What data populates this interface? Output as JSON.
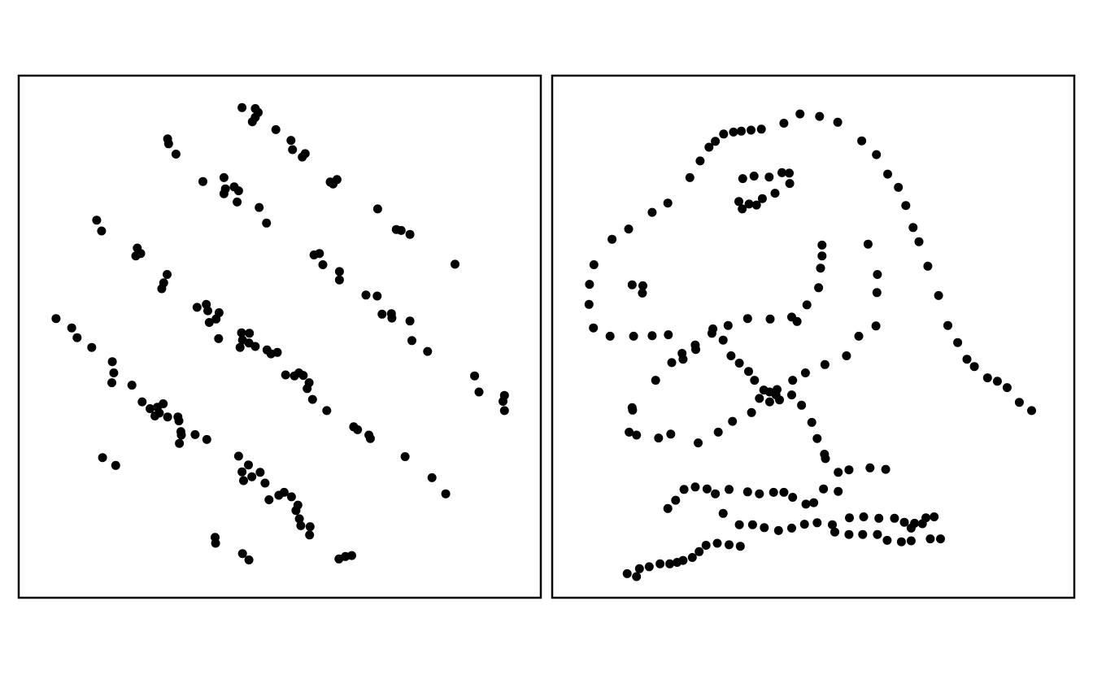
{
  "chart_data": [
    {
      "type": "scatter",
      "title": "",
      "xlabel": "",
      "ylabel": "",
      "xlim": [
        0,
        100
      ],
      "ylim": [
        0,
        100
      ],
      "grid": false,
      "axes_ticks": false,
      "point_color": "#000000",
      "points": [
        [
          42.3,
          96.8
        ],
        [
          45.0,
          96.6
        ],
        [
          45.6,
          95.8
        ],
        [
          45.0,
          94.8
        ],
        [
          44.4,
          93.9
        ],
        [
          49.2,
          92.3
        ],
        [
          52.3,
          90.1
        ],
        [
          52.6,
          88.2
        ],
        [
          55.2,
          87.4
        ],
        [
          54.6,
          86.7
        ],
        [
          27.1,
          90.4
        ],
        [
          27.3,
          89.4
        ],
        [
          28.8,
          87.3
        ],
        [
          34.3,
          81.7
        ],
        [
          38.6,
          82.5
        ],
        [
          38.9,
          80.2
        ],
        [
          40.7,
          80.6
        ],
        [
          41.6,
          79.8
        ],
        [
          38.6,
          79.2
        ],
        [
          41.3,
          77.5
        ],
        [
          45.8,
          76.4
        ],
        [
          47.3,
          73.2
        ],
        [
          60.3,
          81.6
        ],
        [
          60.9,
          81.2
        ],
        [
          61.7,
          82.1
        ],
        [
          70.0,
          76.1
        ],
        [
          73.8,
          71.9
        ],
        [
          74.8,
          71.7
        ],
        [
          76.6,
          70.9
        ],
        [
          85.8,
          64.8
        ],
        [
          12.6,
          73.8
        ],
        [
          13.6,
          71.6
        ],
        [
          20.9,
          68.1
        ],
        [
          21.6,
          67.0
        ],
        [
          20.6,
          66.5
        ],
        [
          57.0,
          66.7
        ],
        [
          58.1,
          67.0
        ],
        [
          58.8,
          64.7
        ],
        [
          62.2,
          63.3
        ],
        [
          62.2,
          61.6
        ],
        [
          26.3,
          61.0
        ],
        [
          27.0,
          62.7
        ],
        [
          25.9,
          59.8
        ],
        [
          33.1,
          56.0
        ],
        [
          35.0,
          56.6
        ],
        [
          35.3,
          55.3
        ],
        [
          37.6,
          54.9
        ],
        [
          37.0,
          53.6
        ],
        [
          35.6,
          52.9
        ],
        [
          37.5,
          49.6
        ],
        [
          42.2,
          50.8
        ],
        [
          43.8,
          50.7
        ],
        [
          41.9,
          47.8
        ],
        [
          42.4,
          49.3
        ],
        [
          43.7,
          48.7
        ],
        [
          45.0,
          48.0
        ],
        [
          47.4,
          47.3
        ],
        [
          48.2,
          46.5
        ],
        [
          49.5,
          46.8
        ],
        [
          67.6,
          58.5
        ],
        [
          69.9,
          58.3
        ],
        [
          70.9,
          54.6
        ],
        [
          72.8,
          54.7
        ],
        [
          72.9,
          53.8
        ],
        [
          76.6,
          53.2
        ],
        [
          77.0,
          49.2
        ],
        [
          80.2,
          47.0
        ],
        [
          4.3,
          53.7
        ],
        [
          7.5,
          51.8
        ],
        [
          8.6,
          49.8
        ],
        [
          11.6,
          47.8
        ],
        [
          15.8,
          44.9
        ],
        [
          16.1,
          42.6
        ],
        [
          15.7,
          40.6
        ],
        [
          19.8,
          40.1
        ],
        [
          21.9,
          36.7
        ],
        [
          23.5,
          35.3
        ],
        [
          25.4,
          34.4
        ],
        [
          25.0,
          35.6
        ],
        [
          26.2,
          36.3
        ],
        [
          24.5,
          33.8
        ],
        [
          27.1,
          33.6
        ],
        [
          29.2,
          33.6
        ],
        [
          29.4,
          32.8
        ],
        [
          29.8,
          30.6
        ],
        [
          29.5,
          28.2
        ],
        [
          29.9,
          29.9
        ],
        [
          32.7,
          30.0
        ],
        [
          35.1,
          29.0
        ],
        [
          51.2,
          42.2
        ],
        [
          53.9,
          42.6
        ],
        [
          53.0,
          42.0
        ],
        [
          54.8,
          42.1
        ],
        [
          56.0,
          40.6
        ],
        [
          55.6,
          39.4
        ],
        [
          56.7,
          37.2
        ],
        [
          59.6,
          34.9
        ],
        [
          65.1,
          31.6
        ],
        [
          65.9,
          31.0
        ],
        [
          68.2,
          29.9
        ],
        [
          68.5,
          29.2
        ],
        [
          89.8,
          42.0
        ],
        [
          90.7,
          38.7
        ],
        [
          95.9,
          38.0
        ],
        [
          95.6,
          36.8
        ],
        [
          95.9,
          34.9
        ],
        [
          13.8,
          25.3
        ],
        [
          16.5,
          23.7
        ],
        [
          41.6,
          25.6
        ],
        [
          42.3,
          22.4
        ],
        [
          42.6,
          20.6
        ],
        [
          43.6,
          23.8
        ],
        [
          44.3,
          21.4
        ],
        [
          46.0,
          22.3
        ],
        [
          47.0,
          20.1
        ],
        [
          47.8,
          16.7
        ],
        [
          49.8,
          17.6
        ],
        [
          50.9,
          18.2
        ],
        [
          52.4,
          17.3
        ],
        [
          53.7,
          15.6
        ],
        [
          53.3,
          14.5
        ],
        [
          54.0,
          12.8
        ],
        [
          54.3,
          11.4
        ],
        [
          56.2,
          11.2
        ],
        [
          56.1,
          9.5
        ],
        [
          36.8,
          9.0
        ],
        [
          36.9,
          7.8
        ],
        [
          42.4,
          5.7
        ],
        [
          43.7,
          4.4
        ],
        [
          62.1,
          4.6
        ],
        [
          63.4,
          5.1
        ],
        [
          64.7,
          5.3
        ],
        [
          75.6,
          25.5
        ],
        [
          81.1,
          21.2
        ],
        [
          83.9,
          17.9
        ]
      ]
    },
    {
      "type": "scatter",
      "title": "",
      "xlabel": "",
      "ylabel": "",
      "xlim": [
        0,
        100
      ],
      "ylim": [
        0,
        100
      ],
      "grid": false,
      "axes_ticks": false,
      "point_color": "#000000",
      "points": [
        [
          47.3,
          95.5
        ],
        [
          51.3,
          95.0
        ],
        [
          55.0,
          93.8
        ],
        [
          59.9,
          90.0
        ],
        [
          62.9,
          87.2
        ],
        [
          65.2,
          83.2
        ],
        [
          67.4,
          80.5
        ],
        [
          68.9,
          76.8
        ],
        [
          70.4,
          72.3
        ],
        [
          71.6,
          69.4
        ],
        [
          73.4,
          64.4
        ],
        [
          75.6,
          58.4
        ],
        [
          77.5,
          52.3
        ],
        [
          79.5,
          48.8
        ],
        [
          81.4,
          45.4
        ],
        [
          82.9,
          43.9
        ],
        [
          85.6,
          41.6
        ],
        [
          87.6,
          40.9
        ],
        [
          89.6,
          39.6
        ],
        [
          92.1,
          36.6
        ],
        [
          94.6,
          34.9
        ],
        [
          44.0,
          93.6
        ],
        [
          39.4,
          92.4
        ],
        [
          37.3,
          92.2
        ],
        [
          35.3,
          92.0
        ],
        [
          33.7,
          91.8
        ],
        [
          31.7,
          91.4
        ],
        [
          30.0,
          89.9
        ],
        [
          28.7,
          88.7
        ],
        [
          26.9,
          85.9
        ],
        [
          24.8,
          82.5
        ],
        [
          20.3,
          77.3
        ],
        [
          17.1,
          75.4
        ],
        [
          12.3,
          72.0
        ],
        [
          8.9,
          69.9
        ],
        [
          5.2,
          64.7
        ],
        [
          4.3,
          60.7
        ],
        [
          4.2,
          56.6
        ],
        [
          5.1,
          51.8
        ],
        [
          8.5,
          50.1
        ],
        [
          13.3,
          50.1
        ],
        [
          17.1,
          50.2
        ],
        [
          20.4,
          50.4
        ],
        [
          23.2,
          46.6
        ],
        [
          25.9,
          48.3
        ],
        [
          29.5,
          51.6
        ],
        [
          32.6,
          52.3
        ],
        [
          36.6,
          53.7
        ],
        [
          41.2,
          53.6
        ],
        [
          45.6,
          54.0
        ],
        [
          46.7,
          53.1
        ],
        [
          48.7,
          56.5
        ],
        [
          51.1,
          60.0
        ],
        [
          51.5,
          64.0
        ],
        [
          51.8,
          66.5
        ],
        [
          51.8,
          68.7
        ],
        [
          13.0,
          60.6
        ],
        [
          15.2,
          60.4
        ],
        [
          15.1,
          58.9
        ],
        [
          35.6,
          82.3
        ],
        [
          37.9,
          82.8
        ],
        [
          41.0,
          82.6
        ],
        [
          43.6,
          83.5
        ],
        [
          45.1,
          83.4
        ],
        [
          45.2,
          81.3
        ],
        [
          42.2,
          79.3
        ],
        [
          39.6,
          78.2
        ],
        [
          38.4,
          76.9
        ],
        [
          36.9,
          77.1
        ],
        [
          35.5,
          76.1
        ],
        [
          34.8,
          77.6
        ],
        [
          61.2,
          68.9
        ],
        [
          63.1,
          62.7
        ],
        [
          63.0,
          59.0
        ],
        [
          62.8,
          52.2
        ],
        [
          59.3,
          50.1
        ],
        [
          56.8,
          46.1
        ],
        [
          52.4,
          44.3
        ],
        [
          48.4,
          42.6
        ],
        [
          45.8,
          41.1
        ],
        [
          42.6,
          39.2
        ],
        [
          42.4,
          38.1
        ],
        [
          41.1,
          36.7
        ],
        [
          39.0,
          37.4
        ],
        [
          37.4,
          34.5
        ],
        [
          33.5,
          32.7
        ],
        [
          30.6,
          30.5
        ],
        [
          26.5,
          28.3
        ],
        [
          20.9,
          30.1
        ],
        [
          18.4,
          29.3
        ],
        [
          13.9,
          29.9
        ],
        [
          12.4,
          30.5
        ],
        [
          13.1,
          35.0
        ],
        [
          13.0,
          35.5
        ],
        [
          17.8,
          41.1
        ],
        [
          21.1,
          44.7
        ],
        [
          23.4,
          45.4
        ],
        [
          26.0,
          47.4
        ],
        [
          29.3,
          50.7
        ],
        [
          31.6,
          49.3
        ],
        [
          33.2,
          46.1
        ],
        [
          34.9,
          44.6
        ],
        [
          36.8,
          42.9
        ],
        [
          38.0,
          41.1
        ],
        [
          39.9,
          39.1
        ],
        [
          41.1,
          38.7
        ],
        [
          43.1,
          37.1
        ],
        [
          45.6,
          38.1
        ],
        [
          47.6,
          36.0
        ],
        [
          49.7,
          32.5
        ],
        [
          50.8,
          29.2
        ],
        [
          52.3,
          26.0
        ],
        [
          52.5,
          25.1
        ],
        [
          55.1,
          22.3
        ],
        [
          57.3,
          22.8
        ],
        [
          61.6,
          23.2
        ],
        [
          64.8,
          22.9
        ],
        [
          20.3,
          14.9
        ],
        [
          21.9,
          16.6
        ],
        [
          23.6,
          18.8
        ],
        [
          25.9,
          19.3
        ],
        [
          28.3,
          18.9
        ],
        [
          30.0,
          17.9
        ],
        [
          32.8,
          18.8
        ],
        [
          36.6,
          18.3
        ],
        [
          39.0,
          17.9
        ],
        [
          41.9,
          18.2
        ],
        [
          44.0,
          18.2
        ],
        [
          45.8,
          17.2
        ],
        [
          48.5,
          15.8
        ],
        [
          50.1,
          16.1
        ],
        [
          52.1,
          18.9
        ],
        [
          55.1,
          18.4
        ],
        [
          57.4,
          13.0
        ],
        [
          60.3,
          13.2
        ],
        [
          63.4,
          12.9
        ],
        [
          66.6,
          12.9
        ],
        [
          68.6,
          12.1
        ],
        [
          70.0,
          10.9
        ],
        [
          70.7,
          11.9
        ],
        [
          72.3,
          11.8
        ],
        [
          73.0,
          13.0
        ],
        [
          74.7,
          13.2
        ],
        [
          31.6,
          13.9
        ],
        [
          34.9,
          11.6
        ],
        [
          37.6,
          11.6
        ],
        [
          40.0,
          11.0
        ],
        [
          42.9,
          10.4
        ],
        [
          45.6,
          10.9
        ],
        [
          48.2,
          11.7
        ],
        [
          50.8,
          12.0
        ],
        [
          53.9,
          11.6
        ],
        [
          54.4,
          10.1
        ],
        [
          57.3,
          9.6
        ],
        [
          60.1,
          9.6
        ],
        [
          63.1,
          9.6
        ],
        [
          65.1,
          8.4
        ],
        [
          68.0,
          8.1
        ],
        [
          70.0,
          8.3
        ],
        [
          73.9,
          8.7
        ],
        [
          76.0,
          8.7
        ],
        [
          35.1,
          7.2
        ],
        [
          32.8,
          7.5
        ],
        [
          30.4,
          7.8
        ],
        [
          28.1,
          7.4
        ],
        [
          26.7,
          6.1
        ],
        [
          25.3,
          4.9
        ],
        [
          23.4,
          4.3
        ],
        [
          22.2,
          3.9
        ],
        [
          20.7,
          3.6
        ],
        [
          18.7,
          3.6
        ],
        [
          16.5,
          3.0
        ],
        [
          14.5,
          2.6
        ],
        [
          13.9,
          1.0
        ],
        [
          12.0,
          1.6
        ]
      ]
    }
  ]
}
